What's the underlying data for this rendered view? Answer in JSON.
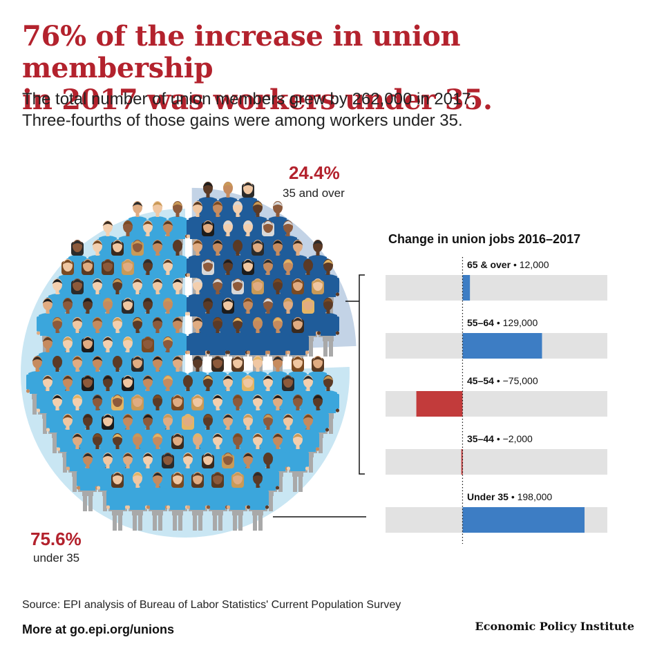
{
  "headline": {
    "line1": "76% of the increase in union membership",
    "line2": "in 2017 was workers under 35."
  },
  "subhead": {
    "line1": "The total number of union members grew by 262,000 in 2017.",
    "line2": "Three-fourths of those gains were among workers under 35."
  },
  "pie": {
    "over35": {
      "pct": "24.4%",
      "label": "35 and over",
      "share": 24.4
    },
    "under35": {
      "pct": "75.6%",
      "label": "under 35",
      "share": 75.6
    }
  },
  "colors": {
    "headline_red": "#b3222d",
    "negative_bar": "#c23b3b",
    "positive_bar": "#3d7dc4",
    "track": "#e2e2e2",
    "pie_under": "#c9e6f3",
    "pie_over": "#c3d3e6",
    "shirt_under": "#3ba6dc",
    "shirt_over": "#1f5c9a"
  },
  "chart_data": {
    "type": "bar",
    "orientation": "horizontal",
    "title": "Change in union jobs 2016–2017",
    "categories": [
      "65 & over",
      "55–64",
      "45–54",
      "35–44",
      "Under 35"
    ],
    "values": [
      12000,
      129000,
      -75000,
      -2000,
      198000
    ],
    "value_labels": [
      "12,000",
      "129,000",
      "−75,000",
      "−2,000",
      "198,000"
    ],
    "separator": "•",
    "xlim": [
      -125000,
      235000
    ],
    "grid": false,
    "zero_line": "dotted"
  },
  "footer": {
    "source": "Source: EPI analysis of Bureau of Labor Statistics' Current Population Survey",
    "more": "More at go.epi.org/unions",
    "org": "Economic Policy Institute"
  }
}
